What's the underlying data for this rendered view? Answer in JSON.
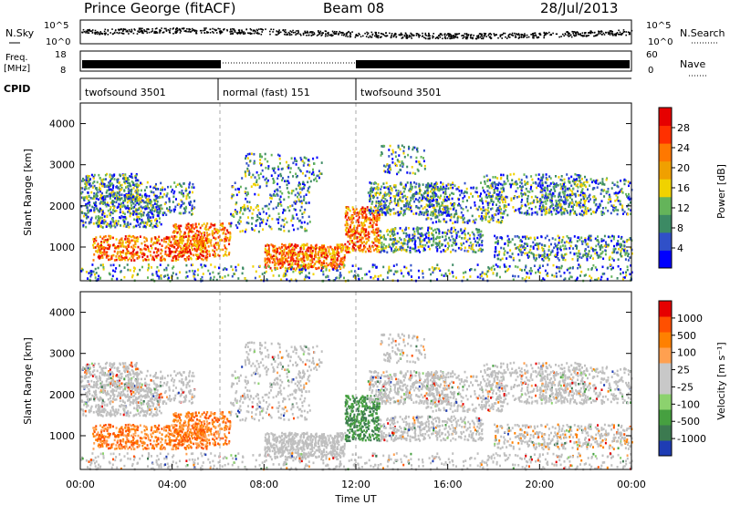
{
  "header": {
    "station": "Prince George (fitACF)",
    "beam": "Beam 08",
    "date": "28/Jul/2013"
  },
  "noise": {
    "left_label": "N.Sky",
    "right_label": "N.Search",
    "left_ticks": [
      "10^5",
      "10^0"
    ],
    "right_ticks": [
      "10^5",
      "10^0"
    ]
  },
  "freq": {
    "left_label_line1": "Freq.",
    "left_label_line2": "[MHz]",
    "left_ticks": [
      "18",
      "8"
    ],
    "right_label": "Nave",
    "right_ticks": [
      "60",
      "0"
    ]
  },
  "cpid": {
    "label": "CPID",
    "segments": [
      {
        "start_hour": 0,
        "end_hour": 6,
        "text": "twofsound 3501"
      },
      {
        "start_hour": 6,
        "end_hour": 12,
        "text": "normal (fast) 151"
      },
      {
        "start_hour": 12,
        "end_hour": 24,
        "text": "twofsound 3501"
      }
    ]
  },
  "chart_data": [
    {
      "type": "heatmap",
      "name": "power",
      "ylabel": "Slant Range [km]",
      "ylim": [
        180,
        4500
      ],
      "yticks": [
        "4000",
        "3000",
        "2000",
        "1000"
      ],
      "colorbar_label": "Power [dB]",
      "colorbar_ticks": [
        "28",
        "24",
        "20",
        "16",
        "12",
        "8",
        "4"
      ],
      "colorbar_colors": [
        "#0000ff",
        "#3050c8",
        "#3c8a64",
        "#64b45a",
        "#f0d200",
        "#f0a000",
        "#ff7800",
        "#ff3000",
        "#e60000"
      ]
    },
    {
      "type": "heatmap",
      "name": "velocity",
      "ylabel": "Slant Range [km]",
      "ylim": [
        180,
        4500
      ],
      "yticks": [
        "4000",
        "3000",
        "2000",
        "1000"
      ],
      "colorbar_label": "Velocity [m s⁻¹]",
      "colorbar_ticks": [
        "1000",
        "500",
        "100",
        "25",
        "-25",
        "-100",
        "-500",
        "-1000"
      ],
      "colorbar_colors": [
        "#1e3cb4",
        "#3c7a50",
        "#46a040",
        "#8cd26e",
        "#c8c8c8",
        "#c8c8c8",
        "#ffa050",
        "#ff8000",
        "#ff5000",
        "#e60000"
      ]
    }
  ],
  "xaxis": {
    "label": "Time UT",
    "ticks": [
      "00:00",
      "04:00",
      "08:00",
      "12:00",
      "16:00",
      "20:00",
      "00:00"
    ]
  },
  "colors": {
    "ground_scatter": "#bfbfbf"
  }
}
